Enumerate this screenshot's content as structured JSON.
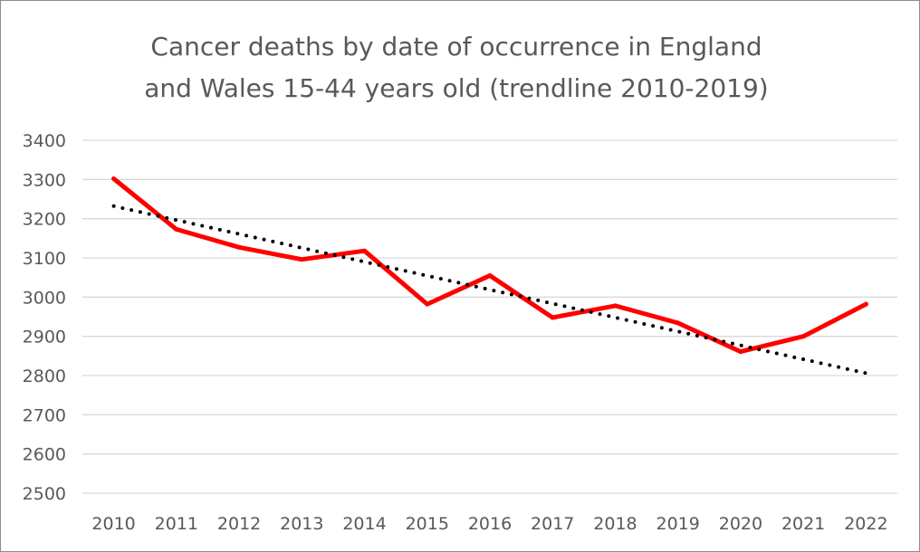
{
  "chart_data": {
    "type": "line",
    "title_lines": [
      "Cancer deaths by date of occurrence in England",
      "and Wales 15-44 years old (trendline 2010-2019)"
    ],
    "xlabel": "",
    "ylabel": "",
    "categories": [
      "2010",
      "2011",
      "2012",
      "2013",
      "2014",
      "2015",
      "2016",
      "2017",
      "2018",
      "2019",
      "2020",
      "2021",
      "2022"
    ],
    "ylim": [
      2500,
      3400
    ],
    "yticks": [
      "2500",
      "2600",
      "2700",
      "2800",
      "2900",
      "3000",
      "3100",
      "3200",
      "3300",
      "3400"
    ],
    "grid": true,
    "legend": "none",
    "series": [
      {
        "values": [
          3302,
          3173,
          3127,
          3096,
          3118,
          2982,
          3055,
          2948,
          2978,
          2934,
          2861,
          2900,
          2982
        ],
        "color": "#ff0000",
        "style": "solid"
      }
    ],
    "trendline": {
      "fit_range": [
        "2010",
        "2019"
      ],
      "start_value": 3232,
      "end_value": 2806,
      "color": "#000000",
      "style": "dotted"
    }
  }
}
